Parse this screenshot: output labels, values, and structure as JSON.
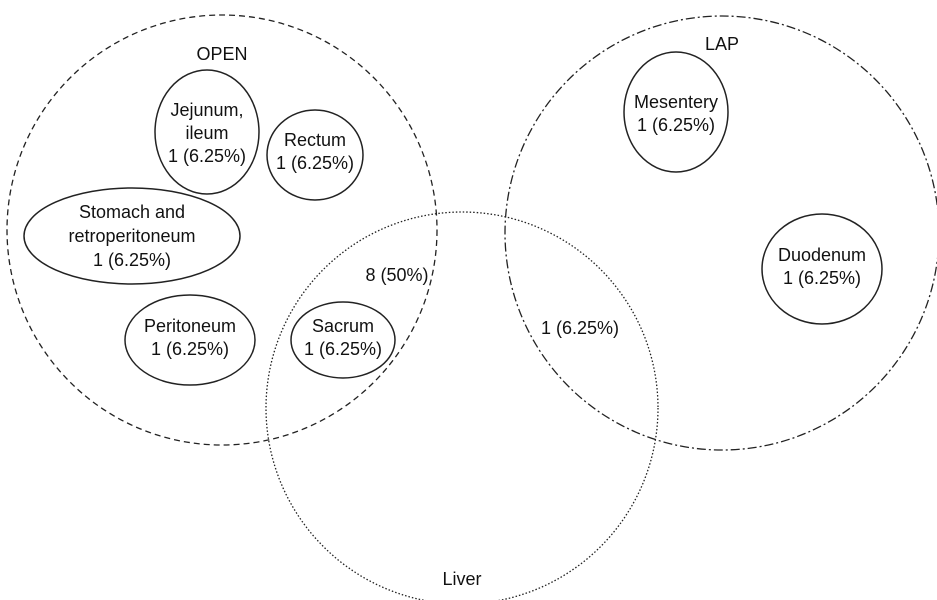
{
  "sets": [
    {
      "label": "OPEN"
    },
    {
      "label": "LAP"
    },
    {
      "label": "Liver"
    }
  ],
  "regions": [
    {
      "lines": [
        "Jejunum,",
        "ileum",
        "1 (6.25%)"
      ]
    },
    {
      "lines": [
        "Rectum",
        "1 (6.25%)"
      ]
    },
    {
      "lines": [
        "Stomach and",
        "retroperitoneum",
        "1 (6.25%)"
      ]
    },
    {
      "lines": [
        "Peritoneum",
        "1 (6.25%)"
      ]
    },
    {
      "lines": [
        "Sacrum",
        "1 (6.25%)"
      ]
    },
    {
      "lines": [
        "8 (50%)"
      ]
    },
    {
      "lines": [
        "1 (6.25%)"
      ]
    },
    {
      "lines": [
        "Mesentery",
        "1 (6.25%)"
      ]
    },
    {
      "lines": [
        "Duodenum",
        "1 (6.25%)"
      ]
    }
  ]
}
